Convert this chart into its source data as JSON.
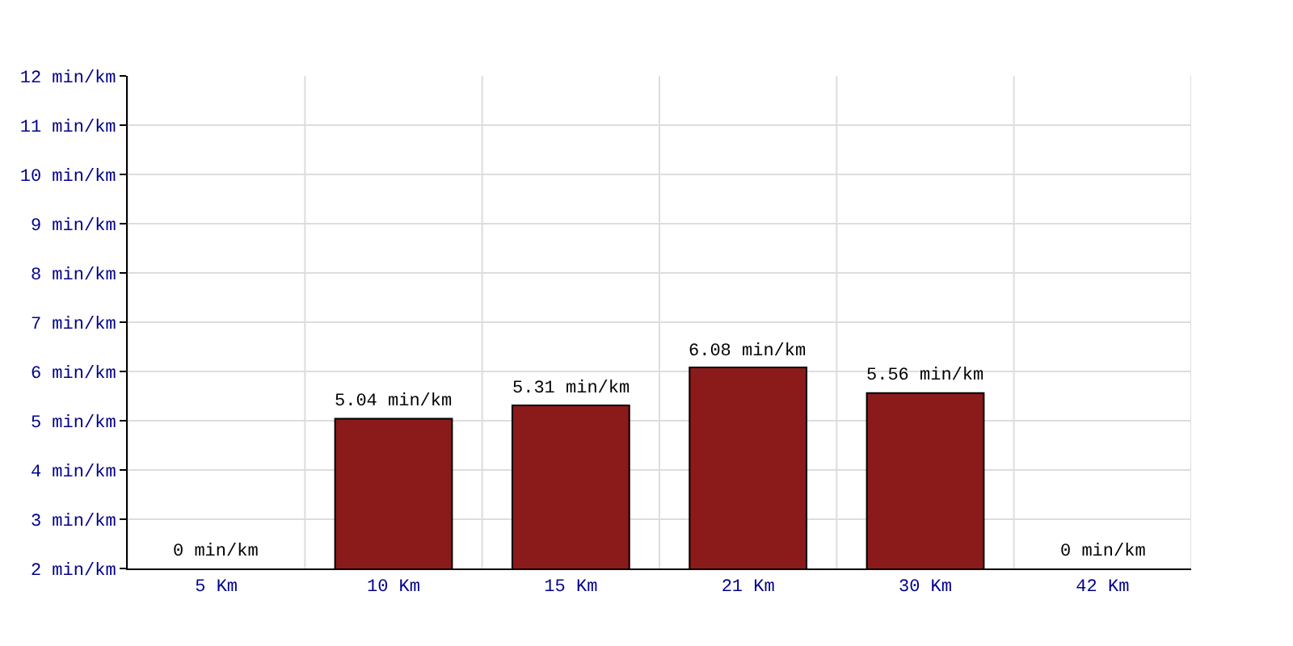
{
  "chart_data": {
    "type": "bar",
    "categories": [
      "5 Km",
      "10 Km",
      "15 Km",
      "21 Km",
      "30 Km",
      "42 Km"
    ],
    "values": [
      null,
      5.04,
      5.31,
      6.08,
      5.56,
      null
    ],
    "value_labels": [
      "0 min/km",
      "5.04 min/km",
      "5.31 min/km",
      "6.08 min/km",
      "5.56 min/km",
      "0 min/km"
    ],
    "color": "#8b1a1a",
    "ylim": [
      2,
      12
    ],
    "yticks": [
      {
        "value": 2,
        "label": "2 min/km"
      },
      {
        "value": 3,
        "label": "3 min/km"
      },
      {
        "value": 4,
        "label": "4 min/km"
      },
      {
        "value": 5,
        "label": "5 min/km"
      },
      {
        "value": 6,
        "label": "6 min/km"
      },
      {
        "value": 7,
        "label": "7 min/km"
      },
      {
        "value": 8,
        "label": "8 min/km"
      },
      {
        "value": 9,
        "label": "9 min/km"
      },
      {
        "value": 10,
        "label": "10 min/km"
      },
      {
        "value": 11,
        "label": "11 min/km"
      },
      {
        "value": 12,
        "label": "12 min/km"
      }
    ],
    "grid": true
  }
}
